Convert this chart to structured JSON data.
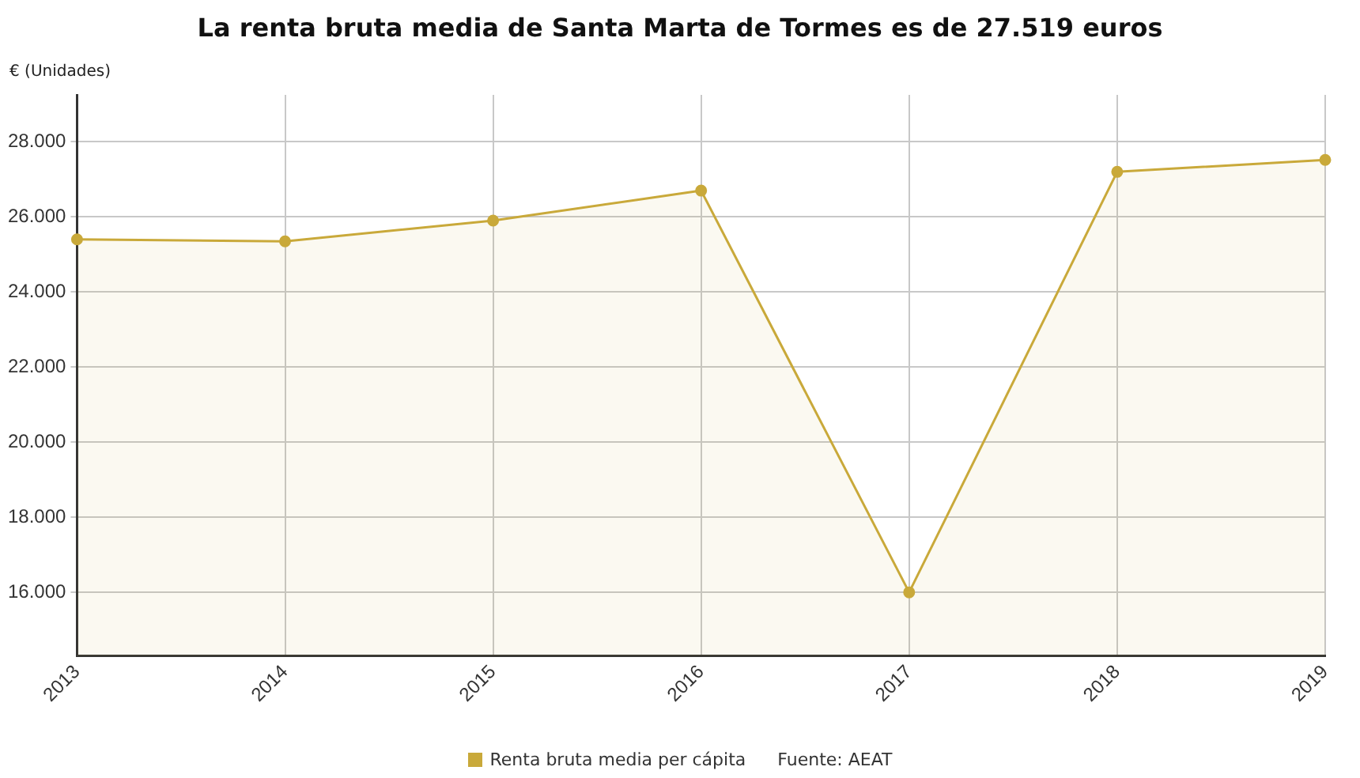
{
  "chart_data": {
    "type": "area",
    "title": "La renta bruta media de Santa Marta de Tormes es de 27.519 euros",
    "ylabel": "€ (Unidades)",
    "categories": [
      "2013",
      "2014",
      "2015",
      "2016",
      "2017",
      "2018",
      "2019"
    ],
    "series": [
      {
        "name": "Renta bruta media per cápita",
        "color": "#c9a93a",
        "values": [
          25400,
          25350,
          25900,
          26700,
          16000,
          27200,
          27519
        ]
      }
    ],
    "ylim": [
      14300,
      29250
    ],
    "yticks": [
      {
        "value": 16000,
        "label": "16.000"
      },
      {
        "value": 18000,
        "label": "18.000"
      },
      {
        "value": 20000,
        "label": "20.000"
      },
      {
        "value": 22000,
        "label": "22.000"
      },
      {
        "value": 24000,
        "label": "24.000"
      },
      {
        "value": 26000,
        "label": "26.000"
      },
      {
        "value": 28000,
        "label": "28.000"
      }
    ],
    "grid": true,
    "legend": "bottom",
    "marker": "circle",
    "annotations": [
      "Fuente: AEAT"
    ]
  }
}
